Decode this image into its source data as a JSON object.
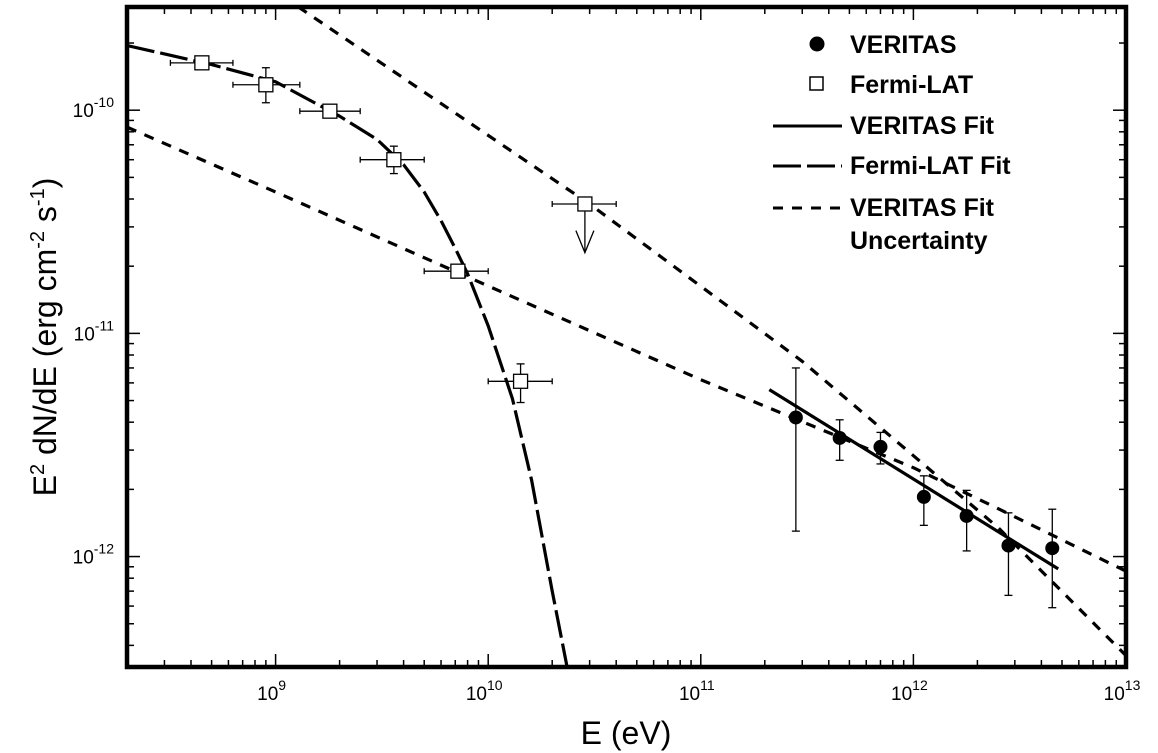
{
  "chart_data": {
    "type": "scatter",
    "x_scale": "log",
    "y_scale": "log",
    "xlim": [
      200000000.0,
      10000000000000.0
    ],
    "ylim": [
      3.2e-13,
      2.9e-10
    ],
    "xlabel_base": "E (eV)",
    "ylabel_parts": {
      "a": "E",
      "a_sup": "2",
      "b": " dN/dE (erg cm",
      "b_sup": "-2",
      "c": " s",
      "c_sup": "-1",
      "d": ")"
    },
    "x_ticks": [
      {
        "value": 1000000000.0,
        "base": "10",
        "exp": "9"
      },
      {
        "value": 10000000000.0,
        "base": "10",
        "exp": "10"
      },
      {
        "value": 100000000000.0,
        "base": "10",
        "exp": "11"
      },
      {
        "value": 1000000000000.0,
        "base": "10",
        "exp": "12"
      },
      {
        "value": 10000000000000.0,
        "base": "10",
        "exp": "13"
      }
    ],
    "y_ticks": [
      {
        "value": 1e-10,
        "base": "10",
        "exp": "-10"
      },
      {
        "value": 1e-11,
        "base": "10",
        "exp": "-11"
      },
      {
        "value": 1e-12,
        "base": "10",
        "exp": "-12"
      }
    ],
    "legend": {
      "placement": "top-right",
      "entries": [
        {
          "key": "veritas",
          "label": "VERITAS",
          "style": "filled-circle"
        },
        {
          "key": "fermi",
          "label": "Fermi-LAT",
          "style": "open-square"
        },
        {
          "key": "veritas_fit",
          "label": "VERITAS Fit",
          "style": "solid-line"
        },
        {
          "key": "fermi_fit",
          "label": "Fermi-LAT Fit",
          "style": "long-dash-line"
        },
        {
          "key": "uncertainty",
          "label": "VERITAS Fit",
          "label2": "Uncertainty",
          "style": "short-dash-line"
        }
      ]
    },
    "series": [
      {
        "key": "veritas",
        "name": "VERITAS",
        "points": [
          {
            "x": 280000000000.0,
            "y": 4.2e-12,
            "ylo": 1.3e-12,
            "yhi": 7e-12
          },
          {
            "x": 450000000000.0,
            "y": 3.4e-12,
            "ylo": 2.7e-12,
            "yhi": 4.1e-12
          },
          {
            "x": 700000000000.0,
            "y": 3.1e-12,
            "ylo": 2.6e-12,
            "yhi": 3.6e-12
          },
          {
            "x": 1120000000000.0,
            "y": 1.85e-12,
            "ylo": 1.38e-12,
            "yhi": 2.3e-12
          },
          {
            "x": 1780000000000.0,
            "y": 1.52e-12,
            "ylo": 1.06e-12,
            "yhi": 1.98e-12
          },
          {
            "x": 2800000000000.0,
            "y": 1.12e-12,
            "ylo": 6.7e-13,
            "yhi": 1.57e-12
          },
          {
            "x": 4500000000000.0,
            "y": 1.09e-12,
            "ylo": 5.9e-13,
            "yhi": 1.63e-12
          }
        ]
      },
      {
        "key": "fermi",
        "name": "Fermi-LAT",
        "points": [
          {
            "x": 450000000.0,
            "y": 1.63e-10,
            "xlo": 320000000.0,
            "xhi": 630000000.0,
            "ylo": 1.55e-10,
            "yhi": 1.72e-10
          },
          {
            "x": 900000000.0,
            "y": 1.3e-10,
            "xlo": 630000000.0,
            "xhi": 1300000000.0,
            "ylo": 1.08e-10,
            "yhi": 1.55e-10
          },
          {
            "x": 1800000000.0,
            "y": 9.9e-11,
            "xlo": 1300000000.0,
            "xhi": 2500000000.0,
            "ylo": 9.5e-11,
            "yhi": 1.04e-10
          },
          {
            "x": 3600000000.0,
            "y": 6e-11,
            "xlo": 2500000000.0,
            "xhi": 5000000000.0,
            "ylo": 5.2e-11,
            "yhi": 6.9e-11
          },
          {
            "x": 7200000000.0,
            "y": 1.9e-11,
            "xlo": 5000000000.0,
            "xhi": 10000000000.0,
            "ylo": 1.8e-11,
            "yhi": 2e-11
          },
          {
            "x": 14200000000.0,
            "y": 6.1e-12,
            "xlo": 10000000000.0,
            "xhi": 20000000000.0,
            "ylo": 4.9e-12,
            "yhi": 7.3e-12
          },
          {
            "x": 28500000000.0,
            "y": 3.8e-11,
            "xlo": 20000000000.0,
            "xhi": 40000000000.0,
            "upper_limit": true,
            "arrow_to": 2.3e-11
          }
        ]
      }
    ],
    "curves": [
      {
        "key": "veritas_fit",
        "name": "VERITAS Fit",
        "style": "solid",
        "x": [
          210000000000.0,
          4800000000000.0
        ],
        "y": [
          5.6e-12,
          8.8e-13
        ]
      },
      {
        "key": "uncertainty_upper",
        "name": "VERITAS Fit Uncertainty",
        "style": "short-dash",
        "x": [
          1280000000.0,
          30000000000.0,
          300000000000.0,
          2500000000000.0,
          10000000000000.0
        ],
        "y": [
          2.9e-10,
          3.8e-11,
          7.5e-12,
          1.35e-12,
          3.6e-13
        ]
      },
      {
        "key": "uncertainty_lower",
        "name": "VERITAS Fit Uncertainty",
        "style": "short-dash",
        "x": [
          200000000.0,
          1000000000.0,
          10000000000.0,
          100000000000.0,
          1000000000000.0,
          2500000000000.0,
          10000000000000.0
        ],
        "y": [
          8.4e-11,
          4.3e-11,
          1.63e-11,
          6.2e-12,
          2.5e-12,
          1.64e-12,
          8.6e-13
        ]
      },
      {
        "key": "fermi_fit",
        "name": "Fermi-LAT Fit",
        "style": "long-dash",
        "x": [
          200000000.0,
          500000000.0,
          1000000000.0,
          2000000000.0,
          3000000000.0,
          4000000000.0,
          5000000000.0,
          6000000000.0,
          7000000000.0,
          8000000000.0,
          10000000000.0,
          13000000000.0,
          16000000000.0,
          20000000000.0,
          23500000000.0
        ],
        "y": [
          1.95e-10,
          1.6e-10,
          1.34e-10,
          9.4e-11,
          7.4e-11,
          5.7e-11,
          4.3e-11,
          3.2e-11,
          2.4e-11,
          1.85e-11,
          1.08e-11,
          5.1e-12,
          2.2e-12,
          7e-13,
          3.2e-13
        ]
      }
    ]
  }
}
